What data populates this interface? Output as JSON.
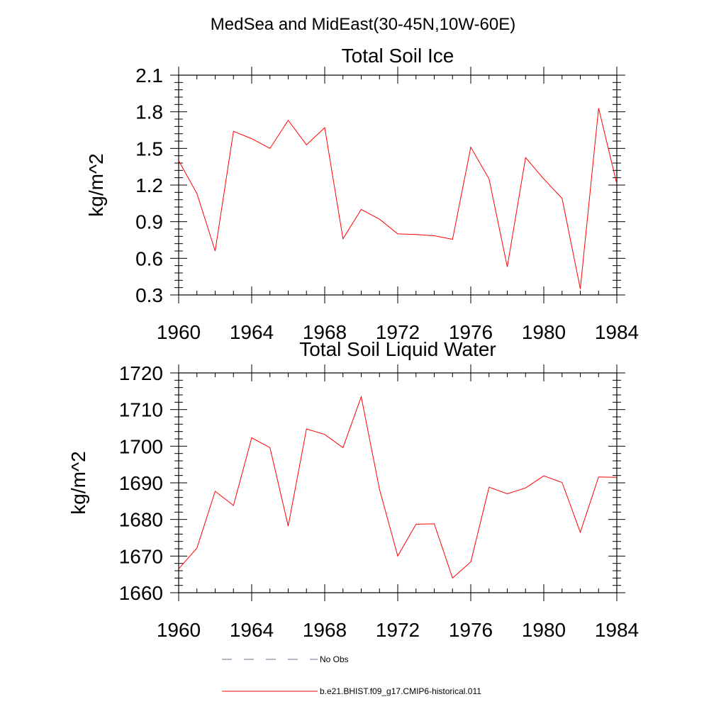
{
  "super_title": "MedSea and MidEast(30-45N,10W-60E)",
  "chart_data": [
    {
      "type": "line",
      "title": "Total Soil Ice",
      "xlabel": "",
      "ylabel": "kg/m^2",
      "xlim": [
        1960,
        1984
      ],
      "ylim": [
        0.3,
        2.1
      ],
      "x_ticks": [
        1960,
        1964,
        1968,
        1972,
        1976,
        1980,
        1984
      ],
      "x_tick_labels": [
        "1960",
        "1964",
        "1968",
        "1972",
        "1976",
        "1980",
        "1984"
      ],
      "y_ticks": [
        0.3,
        0.6,
        0.9,
        1.2,
        1.5,
        1.8,
        2.1
      ],
      "y_tick_labels": [
        "0.3",
        "0.6",
        "0.9",
        "1.2",
        "1.5",
        "1.8",
        "2.1"
      ],
      "x": [
        1960,
        1961,
        1962,
        1963,
        1964,
        1965,
        1966,
        1967,
        1968,
        1969,
        1970,
        1971,
        1972,
        1973,
        1974,
        1975,
        1976,
        1977,
        1978,
        1979,
        1980,
        1981,
        1982,
        1983,
        1984
      ],
      "series": [
        {
          "color": "#ff0000",
          "values": [
            1.4,
            1.13,
            0.66,
            1.64,
            1.58,
            1.5,
            1.73,
            1.53,
            1.67,
            0.76,
            1.0,
            0.92,
            0.8,
            0.795,
            0.785,
            0.755,
            1.51,
            1.25,
            0.53,
            1.425,
            1.25,
            1.09,
            0.35,
            1.83,
            1.21
          ]
        }
      ],
      "grid": false
    },
    {
      "type": "line",
      "title": "Total Soil Liquid Water",
      "xlabel": "",
      "ylabel": "kg/m^2",
      "xlim": [
        1960,
        1984
      ],
      "ylim": [
        1660,
        1720
      ],
      "x_ticks": [
        1960,
        1964,
        1968,
        1972,
        1976,
        1980,
        1984
      ],
      "x_tick_labels": [
        "1960",
        "1964",
        "1968",
        "1972",
        "1976",
        "1980",
        "1984"
      ],
      "y_ticks": [
        1660,
        1670,
        1680,
        1690,
        1700,
        1710,
        1720
      ],
      "y_tick_labels": [
        "1660",
        "1670",
        "1680",
        "1690",
        "1700",
        "1710",
        "1720"
      ],
      "x": [
        1960,
        1961,
        1962,
        1963,
        1964,
        1965,
        1966,
        1967,
        1968,
        1969,
        1970,
        1971,
        1972,
        1973,
        1974,
        1975,
        1976,
        1977,
        1978,
        1979,
        1980,
        1981,
        1982,
        1983,
        1984
      ],
      "series": [
        {
          "color": "#ff0000",
          "values": [
            1666.5,
            1672.2,
            1687.7,
            1683.8,
            1702.3,
            1699.6,
            1678.2,
            1704.7,
            1703.2,
            1699.6,
            1713.5,
            1688.2,
            1670.0,
            1678.7,
            1678.8,
            1664.0,
            1668.4,
            1688.8,
            1687.0,
            1688.6,
            1691.9,
            1690.1,
            1676.5,
            1691.6,
            1691.5
          ]
        }
      ],
      "grid": false
    }
  ],
  "legend": {
    "placement": "bottom-center",
    "entries": [
      {
        "label": "No Obs",
        "color": "#6b6b9a",
        "style": "dashed"
      },
      {
        "label": "b.e21.BHIST.f09_g17.CMIP6-historical.011",
        "color": "#ff0000",
        "style": "solid"
      }
    ]
  }
}
